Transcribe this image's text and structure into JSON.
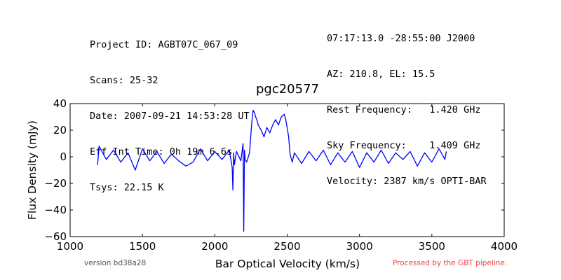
{
  "header": {
    "left_lines": [
      "Project ID: AGBT07C_067_09",
      "Scans: 25-32",
      "Date: 2007-09-21 14:53:28 UT",
      "Eff Int Time: 0h 19m 6.6s",
      "Tsys: 22.15 K"
    ],
    "right_lines": [
      "07:17:13.0 -28:55:00 J2000",
      "AZ: 210.8, EL: 15.5",
      "Rest Frequency:   1.420 GHz",
      "Sky Frequency:    1.409 GHz",
      "Velocity: 2387 km/s OPTI-BAR"
    ]
  },
  "footer": {
    "version": "version bd38a28",
    "pipeline": "Processed by the GBT pipeline."
  },
  "colors": {
    "line": "#0000ff",
    "footer_pipeline": "#ee4444",
    "footer_version": "#555555"
  },
  "chart_data": {
    "type": "line",
    "title": "pgc20577",
    "xlabel": "Bar Optical Velocity (km/s)",
    "ylabel": "Flux Density (mJy)",
    "xlim": [
      1000,
      4000
    ],
    "ylim": [
      -60,
      40
    ],
    "xticks": [
      1000,
      1500,
      2000,
      2500,
      3000,
      3500,
      4000
    ],
    "yticks": [
      -60,
      -40,
      -20,
      0,
      20,
      40
    ],
    "grid": false,
    "legend": "none",
    "series": [
      {
        "x": [
          1190,
          1200,
          1250,
          1300,
          1350,
          1400,
          1450,
          1500,
          1550,
          1600,
          1650,
          1700,
          1750,
          1800,
          1850,
          1900,
          1950,
          2000,
          2050,
          2100,
          2120,
          2125,
          2130,
          2135,
          2150,
          2180,
          2195,
          2200,
          2205,
          2210,
          2220,
          2240,
          2255,
          2265,
          2275,
          2282,
          2290,
          2300,
          2320,
          2340,
          2360,
          2380,
          2400,
          2420,
          2440,
          2460,
          2480,
          2490,
          2500,
          2510,
          2520,
          2535,
          2550,
          2600,
          2650,
          2700,
          2750,
          2800,
          2850,
          2900,
          2950,
          3000,
          3050,
          3100,
          3150,
          3200,
          3250,
          3300,
          3350,
          3400,
          3450,
          3500,
          3550,
          3590,
          3600
        ],
        "y": [
          -6,
          8,
          -2,
          5,
          -4,
          3,
          -10,
          6,
          -3,
          4,
          -5,
          2,
          -3,
          -7,
          -4,
          6,
          -3,
          4,
          -2,
          5,
          -8,
          -25,
          3,
          -6,
          4,
          -3,
          10,
          -56,
          5,
          -2,
          -4,
          3,
          25,
          35,
          33,
          30,
          28,
          24,
          20,
          15,
          22,
          18,
          24,
          28,
          24,
          30,
          32,
          28,
          22,
          15,
          2,
          -4,
          3,
          -5,
          4,
          -3,
          5,
          -6,
          3,
          -4,
          4,
          -8,
          3,
          -4,
          5,
          -5,
          3,
          -2,
          4,
          -7,
          3,
          -4,
          6,
          -2,
          4
        ]
      }
    ]
  }
}
